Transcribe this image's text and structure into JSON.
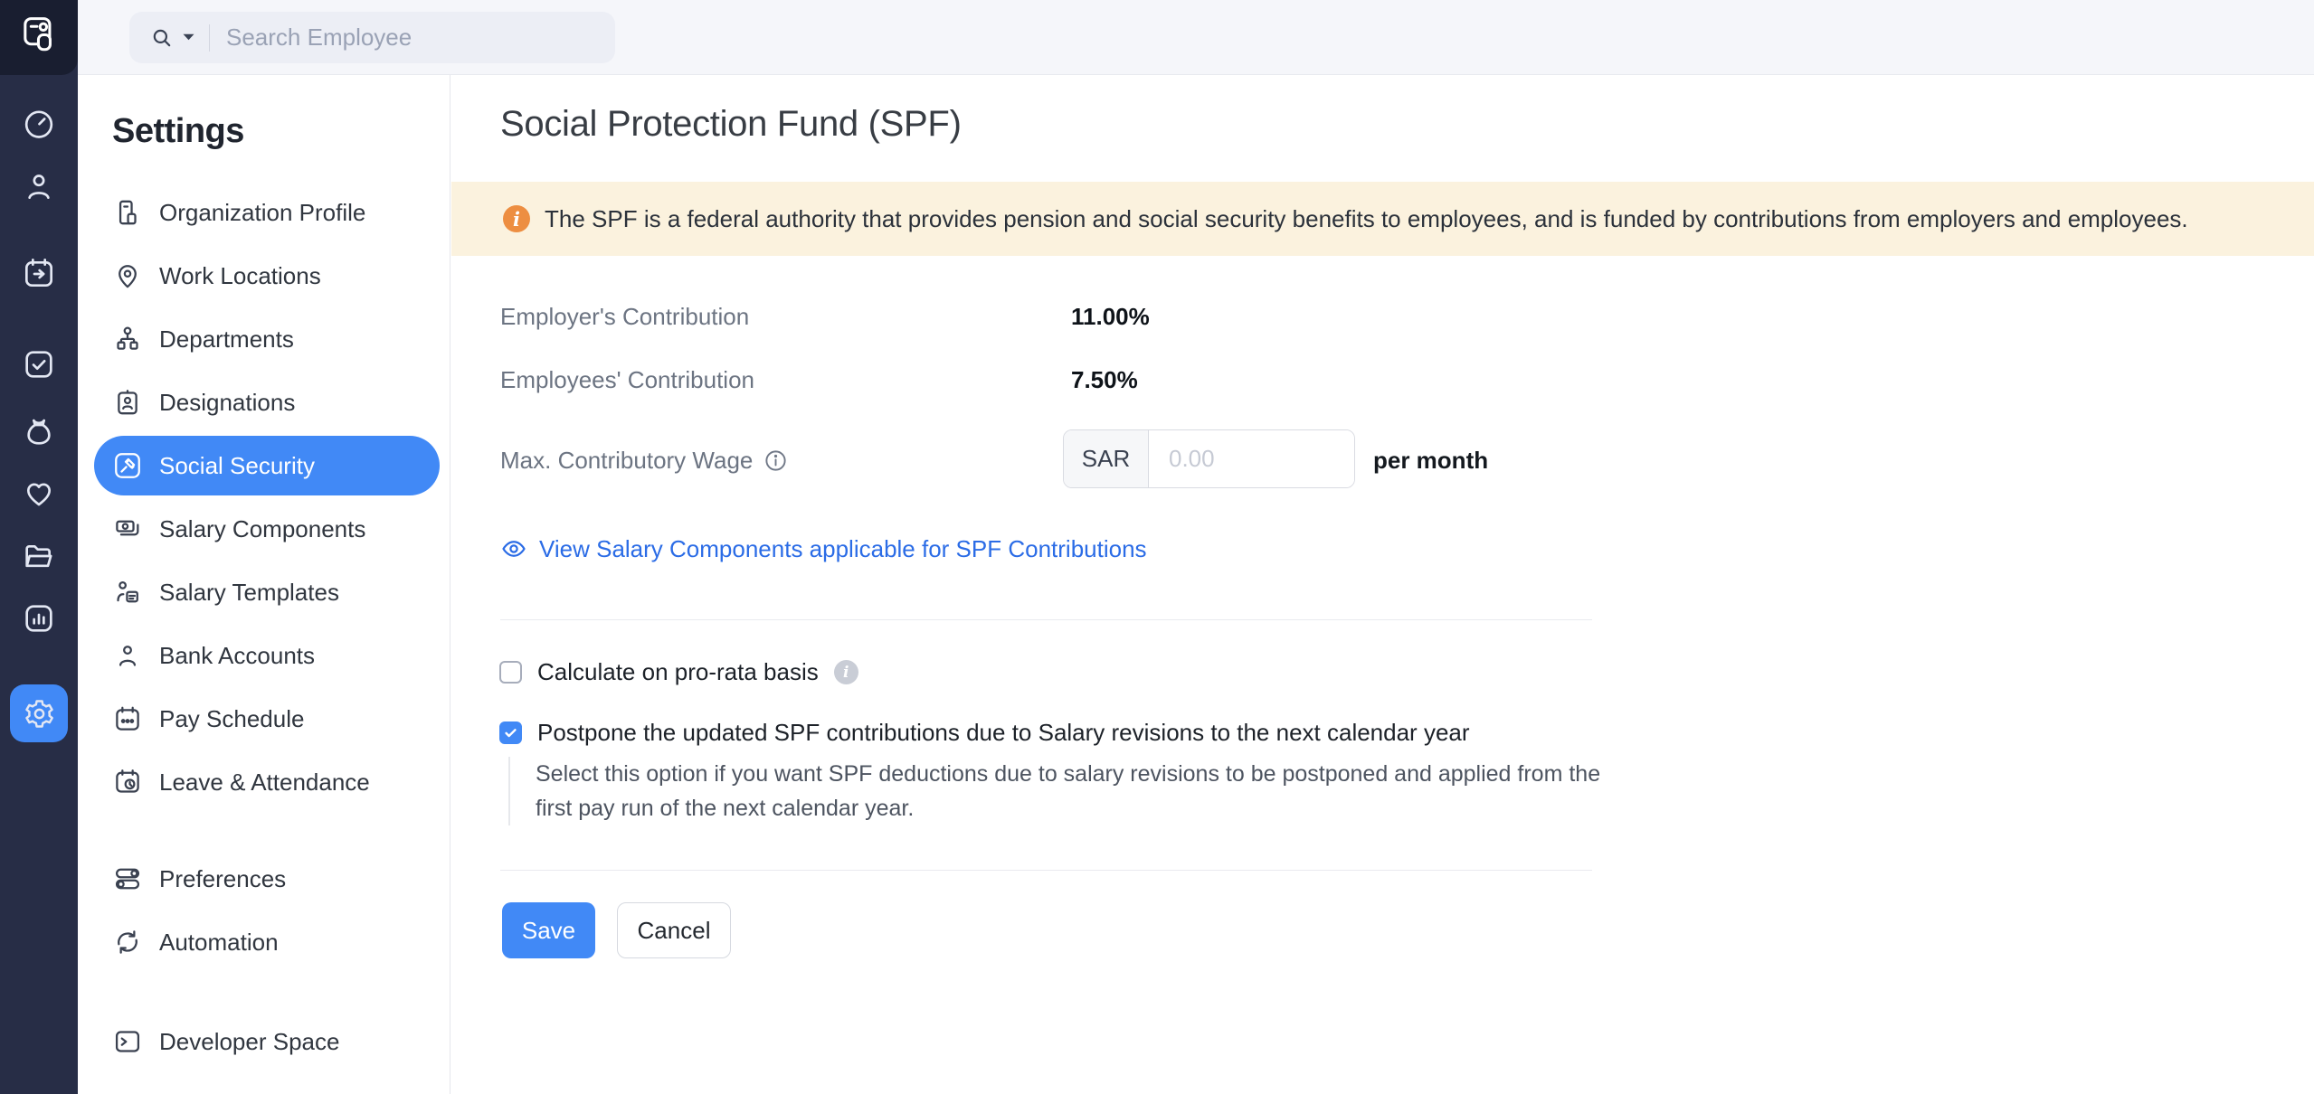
{
  "colors": {
    "accent": "#4189F6",
    "banner_bg": "#FBF2DE",
    "banner_icon": "#ED8E41",
    "link": "#2B6CE6",
    "rail_bg": "#272D46"
  },
  "topbar": {
    "search": {
      "placeholder": "Search Employee",
      "icon": "search-icon",
      "caret": "chevron-down-icon"
    }
  },
  "rail": {
    "logo_icon": "payroll-logo-icon",
    "items": [
      {
        "icon": "timer-icon",
        "active": false
      },
      {
        "icon": "user-icon",
        "active": false
      },
      {
        "icon": "calendar-arrow-icon",
        "active": false
      },
      {
        "icon": "task-check-icon",
        "active": false
      },
      {
        "icon": "money-bag-icon",
        "active": false
      },
      {
        "icon": "heart-icon",
        "active": false
      },
      {
        "icon": "folder-icon",
        "active": false
      },
      {
        "icon": "chart-icon",
        "active": false
      },
      {
        "icon": "gear-icon",
        "active": true
      }
    ]
  },
  "sidebar": {
    "title": "Settings",
    "items": [
      {
        "label": "Organization Profile",
        "icon": "building-icon",
        "active": false,
        "section": 1
      },
      {
        "label": "Work Locations",
        "icon": "map-pin-icon",
        "active": false,
        "section": 1
      },
      {
        "label": "Departments",
        "icon": "org-chart-icon",
        "active": false,
        "section": 1
      },
      {
        "label": "Designations",
        "icon": "id-card-icon",
        "active": false,
        "section": 1
      },
      {
        "label": "Social Security",
        "icon": "gavel-icon",
        "active": true,
        "section": 1
      },
      {
        "label": "Salary Components",
        "icon": "banknotes-icon",
        "active": false,
        "section": 1
      },
      {
        "label": "Salary Templates",
        "icon": "user-doc-icon",
        "active": false,
        "section": 1
      },
      {
        "label": "Bank Accounts",
        "icon": "bank-user-icon",
        "active": false,
        "section": 1
      },
      {
        "label": "Pay Schedule",
        "icon": "calendar-dots-icon",
        "active": false,
        "section": 1
      },
      {
        "label": "Leave & Attendance",
        "icon": "calendar-clock-icon",
        "active": false,
        "section": 1
      },
      {
        "label": "Preferences",
        "icon": "toggles-icon",
        "active": false,
        "section": 2
      },
      {
        "label": "Automation",
        "icon": "sync-icon",
        "active": false,
        "section": 2
      },
      {
        "label": "Developer Space",
        "icon": "terminal-icon",
        "active": false,
        "section": 3
      }
    ]
  },
  "main": {
    "title": "Social Protection Fund (SPF)",
    "banner": {
      "icon": "info-icon",
      "text": "The SPF is a federal authority that provides pension and social security benefits to employees, and is funded by contributions from employers and employees."
    },
    "fields": {
      "employer": {
        "label": "Employer's Contribution",
        "value": "11.00%"
      },
      "employee": {
        "label": "Employees' Contribution",
        "value": "7.50%"
      },
      "max_wage": {
        "label": "Max. Contributory Wage",
        "info_icon": "info-outline-icon",
        "currency": "SAR",
        "placeholder": "0.00",
        "value": "",
        "suffix": "per month"
      }
    },
    "link": {
      "icon": "eye-icon",
      "label": "View Salary Components applicable for SPF Contributions"
    },
    "checkboxes": {
      "prorata": {
        "label": "Calculate on pro-rata basis",
        "checked": false,
        "info_icon": "info-solid-icon"
      },
      "postpone": {
        "label": "Postpone the updated SPF contributions due to Salary revisions to the next calendar year",
        "checked": true,
        "description": "Select this option if you want SPF deductions due to salary revisions to be postponed and applied from the first pay run of the next calendar year."
      }
    },
    "buttons": {
      "save": "Save",
      "cancel": "Cancel"
    }
  }
}
